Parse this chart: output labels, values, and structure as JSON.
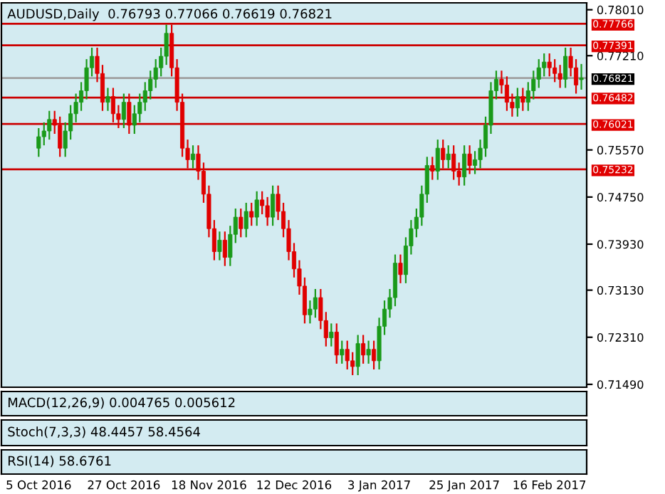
{
  "chart_data": [
    {
      "type": "candlestick",
      "title": "AUDUSD,Daily  0.76793 0.77066 0.76619 0.76821",
      "categories": [
        "5 Oct 2016",
        null,
        null,
        null,
        null,
        null,
        null,
        null,
        null,
        null,
        null,
        null,
        null,
        null,
        null,
        null,
        "27 Oct 2016",
        null,
        null,
        null,
        null,
        null,
        null,
        null,
        null,
        null,
        null,
        null,
        null,
        null,
        null,
        null,
        "18 Nov 2016",
        null,
        null,
        null,
        null,
        null,
        null,
        null,
        null,
        null,
        null,
        null,
        null,
        null,
        null,
        null,
        "12 Dec 2016",
        null,
        null,
        null,
        null,
        null,
        null,
        null,
        null,
        null,
        null,
        null,
        null,
        null,
        null,
        null,
        "3 Jan 2017",
        null,
        null,
        null,
        null,
        null,
        null,
        null,
        null,
        null,
        null,
        null,
        null,
        null,
        null,
        null,
        "25 Jan 2017",
        null,
        null,
        null,
        null,
        null,
        null,
        null,
        null,
        null,
        null,
        null,
        null,
        null,
        null,
        null,
        "16 Feb 2017",
        null,
        null,
        null,
        null,
        null,
        null
      ],
      "ohlc": [
        [
          0.756,
          0.7595,
          0.7545,
          0.758
        ],
        [
          0.758,
          0.7605,
          0.7565,
          0.759
        ],
        [
          0.759,
          0.7625,
          0.7575,
          0.761
        ],
        [
          0.761,
          0.7625,
          0.7585,
          0.76
        ],
        [
          0.76,
          0.7615,
          0.7545,
          0.756
        ],
        [
          0.756,
          0.7605,
          0.7545,
          0.759
        ],
        [
          0.759,
          0.7635,
          0.7575,
          0.762
        ],
        [
          0.762,
          0.7655,
          0.7605,
          0.764
        ],
        [
          0.764,
          0.7675,
          0.7625,
          0.766
        ],
        [
          0.766,
          0.7715,
          0.7645,
          0.77
        ],
        [
          0.77,
          0.7735,
          0.7685,
          0.772
        ],
        [
          0.772,
          0.7735,
          0.7675,
          0.769
        ],
        [
          0.769,
          0.7705,
          0.7625,
          0.764
        ],
        [
          0.764,
          0.7665,
          0.7625,
          0.765
        ],
        [
          0.765,
          0.7665,
          0.7605,
          0.762
        ],
        [
          0.762,
          0.7635,
          0.7595,
          0.761
        ],
        [
          0.761,
          0.7655,
          0.7595,
          0.764
        ],
        [
          0.764,
          0.7655,
          0.7585,
          0.76
        ],
        [
          0.76,
          0.7635,
          0.7585,
          0.762
        ],
        [
          0.762,
          0.7655,
          0.7605,
          0.764
        ],
        [
          0.764,
          0.7675,
          0.7625,
          0.766
        ],
        [
          0.766,
          0.7695,
          0.7645,
          0.768
        ],
        [
          0.768,
          0.7715,
          0.7665,
          0.77
        ],
        [
          0.77,
          0.7735,
          0.7685,
          0.772
        ],
        [
          0.772,
          0.7775,
          0.7705,
          0.776
        ],
        [
          0.776,
          0.7775,
          0.7685,
          0.77
        ],
        [
          0.77,
          0.7715,
          0.7625,
          0.764
        ],
        [
          0.764,
          0.7655,
          0.7545,
          0.756
        ],
        [
          0.756,
          0.7575,
          0.7525,
          0.754
        ],
        [
          0.754,
          0.7565,
          0.7525,
          0.755
        ],
        [
          0.755,
          0.7565,
          0.7505,
          0.752
        ],
        [
          0.752,
          0.7535,
          0.7465,
          0.748
        ],
        [
          0.748,
          0.7495,
          0.7405,
          0.742
        ],
        [
          0.742,
          0.7435,
          0.7365,
          0.738
        ],
        [
          0.738,
          0.7415,
          0.7365,
          0.74
        ],
        [
          0.74,
          0.7415,
          0.7355,
          0.737
        ],
        [
          0.737,
          0.7425,
          0.7355,
          0.741
        ],
        [
          0.741,
          0.7455,
          0.7395,
          0.744
        ],
        [
          0.744,
          0.7455,
          0.7405,
          0.742
        ],
        [
          0.742,
          0.7465,
          0.7405,
          0.745
        ],
        [
          0.745,
          0.7465,
          0.7425,
          0.744
        ],
        [
          0.744,
          0.7485,
          0.7425,
          0.747
        ],
        [
          0.747,
          0.7485,
          0.7445,
          0.746
        ],
        [
          0.746,
          0.7475,
          0.7425,
          0.744
        ],
        [
          0.744,
          0.7495,
          0.7425,
          0.748
        ],
        [
          0.748,
          0.7495,
          0.7435,
          0.745
        ],
        [
          0.745,
          0.7465,
          0.7405,
          0.742
        ],
        [
          0.742,
          0.7435,
          0.7365,
          0.738
        ],
        [
          0.738,
          0.7395,
          0.7335,
          0.735
        ],
        [
          0.735,
          0.7365,
          0.7305,
          0.732
        ],
        [
          0.732,
          0.7335,
          0.7255,
          0.727
        ],
        [
          0.727,
          0.7295,
          0.7255,
          0.728
        ],
        [
          0.728,
          0.7315,
          0.7265,
          0.73
        ],
        [
          0.73,
          0.7315,
          0.7245,
          0.726
        ],
        [
          0.726,
          0.7275,
          0.7215,
          0.723
        ],
        [
          0.723,
          0.7255,
          0.7215,
          0.724
        ],
        [
          0.724,
          0.7255,
          0.7185,
          0.72
        ],
        [
          0.72,
          0.7225,
          0.7185,
          0.721
        ],
        [
          0.721,
          0.7225,
          0.7175,
          0.719
        ],
        [
          0.719,
          0.7205,
          0.7165,
          0.718
        ],
        [
          0.718,
          0.7235,
          0.7165,
          0.722
        ],
        [
          0.722,
          0.7235,
          0.7185,
          0.72
        ],
        [
          0.72,
          0.7225,
          0.7185,
          0.721
        ],
        [
          0.721,
          0.7225,
          0.7175,
          0.719
        ],
        [
          0.719,
          0.7265,
          0.7175,
          0.725
        ],
        [
          0.725,
          0.7295,
          0.7235,
          0.728
        ],
        [
          0.728,
          0.7315,
          0.7265,
          0.73
        ],
        [
          0.73,
          0.7375,
          0.7285,
          0.736
        ],
        [
          0.736,
          0.7375,
          0.7325,
          0.734
        ],
        [
          0.734,
          0.7405,
          0.7325,
          0.739
        ],
        [
          0.739,
          0.7435,
          0.7375,
          0.742
        ],
        [
          0.742,
          0.7455,
          0.7405,
          0.744
        ],
        [
          0.744,
          0.7495,
          0.7425,
          0.748
        ],
        [
          0.748,
          0.7545,
          0.7465,
          0.753
        ],
        [
          0.753,
          0.7545,
          0.7505,
          0.752
        ],
        [
          0.752,
          0.7575,
          0.7505,
          0.756
        ],
        [
          0.756,
          0.7575,
          0.7525,
          0.754
        ],
        [
          0.754,
          0.7565,
          0.7525,
          0.755
        ],
        [
          0.755,
          0.7565,
          0.7505,
          0.752
        ],
        [
          0.752,
          0.7535,
          0.7495,
          0.751
        ],
        [
          0.751,
          0.7565,
          0.7495,
          0.755
        ],
        [
          0.755,
          0.7565,
          0.7515,
          0.753
        ],
        [
          0.753,
          0.7555,
          0.7515,
          0.754
        ],
        [
          0.754,
          0.7575,
          0.7525,
          0.756
        ],
        [
          0.756,
          0.7615,
          0.7545,
          0.76
        ],
        [
          0.76,
          0.7675,
          0.7585,
          0.766
        ],
        [
          0.766,
          0.7695,
          0.7645,
          0.768
        ],
        [
          0.768,
          0.7695,
          0.7655,
          0.767
        ],
        [
          0.767,
          0.7685,
          0.7625,
          0.764
        ],
        [
          0.764,
          0.7655,
          0.7615,
          0.763
        ],
        [
          0.763,
          0.7665,
          0.7615,
          0.765
        ],
        [
          0.765,
          0.7665,
          0.7625,
          0.764
        ],
        [
          0.764,
          0.7675,
          0.7625,
          0.766
        ],
        [
          0.766,
          0.7695,
          0.7645,
          0.768
        ],
        [
          0.768,
          0.7715,
          0.7665,
          0.77
        ],
        [
          0.77,
          0.7725,
          0.7685,
          0.771
        ],
        [
          0.771,
          0.7725,
          0.7685,
          0.77
        ],
        [
          0.77,
          0.7715,
          0.7675,
          0.769
        ],
        [
          0.769,
          0.7705,
          0.7665,
          0.768
        ],
        [
          0.768,
          0.7735,
          0.7665,
          0.772
        ],
        [
          0.772,
          0.7735,
          0.7685,
          0.77
        ],
        [
          0.77,
          0.7715,
          0.7655,
          0.767
        ],
        [
          0.76793,
          0.77066,
          0.76619,
          0.76821
        ]
      ],
      "ylim": [
        0.7144,
        0.7813
      ],
      "yticks": [
        {
          "value": 0.7801,
          "label": "0.78010"
        },
        {
          "value": 0.7721,
          "label": "0.77210"
        },
        {
          "value": 0.7557,
          "label": "0.75570"
        },
        {
          "value": 0.7475,
          "label": "0.74750"
        },
        {
          "value": 0.7393,
          "label": "0.73930"
        },
        {
          "value": 0.7313,
          "label": "0.73130"
        },
        {
          "value": 0.7231,
          "label": "0.72310"
        },
        {
          "value": 0.7149,
          "label": "0.71490"
        }
      ],
      "ref_lines": [
        {
          "axis": "y",
          "value": 0.77766,
          "label": "0.77766",
          "color": "#cc0000"
        },
        {
          "axis": "y",
          "value": 0.77391,
          "label": "0.77391",
          "color": "#cc0000"
        },
        {
          "axis": "y",
          "value": 0.76821,
          "label": "0.76821",
          "color": "#a0a0a0"
        },
        {
          "axis": "y",
          "value": 0.76482,
          "label": "0.76482",
          "color": "#cc0000"
        },
        {
          "axis": "y",
          "value": 0.76021,
          "label": "0.76021",
          "color": "#cc0000"
        },
        {
          "axis": "y",
          "value": 0.75232,
          "label": "0.75232",
          "color": "#cc0000"
        }
      ]
    },
    {
      "type": "other",
      "title": "MACD(12,26,9) 0.004765 0.005612"
    },
    {
      "type": "other",
      "title": "Stoch(7,3,3) 48.4457 58.4564"
    },
    {
      "type": "other",
      "title": "RSI(14) 58.6761"
    }
  ]
}
